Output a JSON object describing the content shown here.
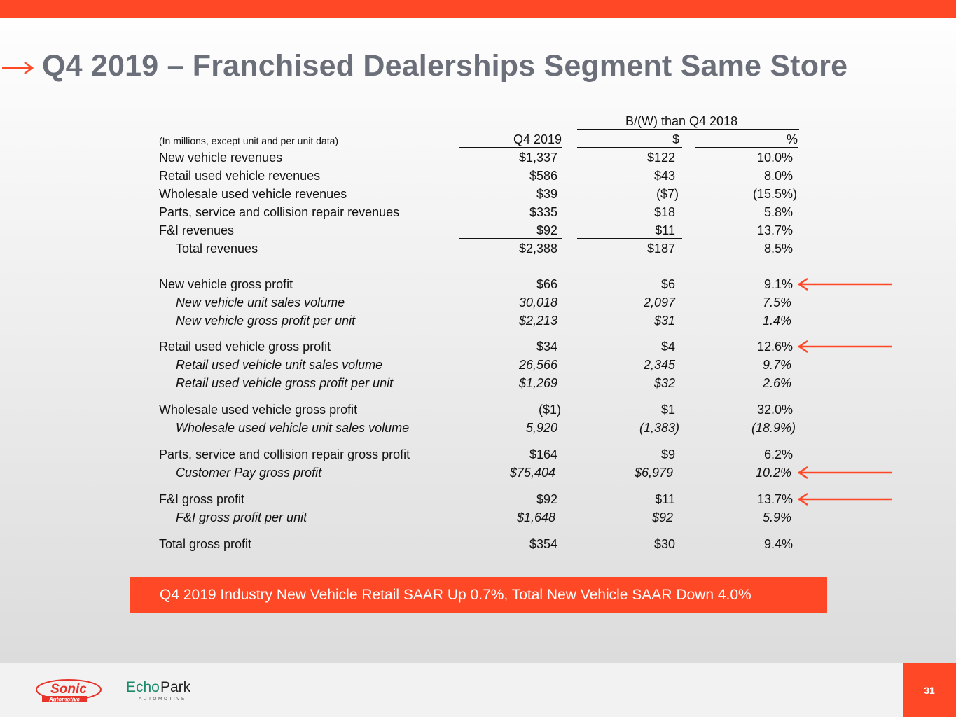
{
  "slide": {
    "title": "Q4 2019 – Franchised Dealerships Segment Same Store",
    "page_number": "31",
    "accent_color": "#ff4826",
    "title_color": "#6b6f7a"
  },
  "table": {
    "group_header": "B/(W) than Q4 2018",
    "units_note": "(In millions, except unit and per unit data)",
    "col_q4": "Q4 2019",
    "col_dollar": "$",
    "col_pct": "%",
    "rows": [
      {
        "label": "New vehicle revenues",
        "q4": "$1,337",
        "d": "$122",
        "p": "10.0%"
      },
      {
        "label": "Retail used vehicle revenues",
        "q4": "$586",
        "d": "$43",
        "p": "8.0%"
      },
      {
        "label": "Wholesale used vehicle revenues",
        "q4": "$39",
        "d": "($7)",
        "p": "(15.5%)"
      },
      {
        "label": "Parts, service and collision repair revenues",
        "q4": "$335",
        "d": "$18",
        "p": "5.8%"
      },
      {
        "label": "F&I revenues",
        "q4": "$92",
        "d": "$11",
        "p": "13.7%"
      },
      {
        "label": "Total revenues",
        "q4": "$2,388",
        "d": "$187",
        "p": "8.5%"
      },
      {
        "label": "New vehicle gross profit",
        "q4": "$66",
        "d": "$6",
        "p": "9.1%"
      },
      {
        "label": "New vehicle unit sales volume",
        "q4": "30,018",
        "d": "2,097",
        "p": "7.5%"
      },
      {
        "label": "New vehicle gross profit per unit",
        "q4": "$2,213",
        "d": "$31",
        "p": "1.4%"
      },
      {
        "label": "Retail used vehicle gross profit",
        "q4": "$34",
        "d": "$4",
        "p": "12.6%"
      },
      {
        "label": "Retail used vehicle unit sales volume",
        "q4": "26,566",
        "d": "2,345",
        "p": "9.7%"
      },
      {
        "label": "Retail used vehicle gross profit per unit",
        "q4": "$1,269",
        "d": "$32",
        "p": "2.6%"
      },
      {
        "label": "Wholesale used vehicle gross profit",
        "q4": "($1)",
        "d": "$1",
        "p": "32.0%"
      },
      {
        "label": "Wholesale used vehicle unit sales volume",
        "q4": "5,920",
        "d": "(1,383)",
        "p": "(18.9%)"
      },
      {
        "label": "Parts, service and collision repair gross profit",
        "q4": "$164",
        "d": "$9",
        "p": "6.2%"
      },
      {
        "label": "Customer Pay gross profit",
        "q4": "$75,404",
        "d": "$6,979",
        "p": "10.2%"
      },
      {
        "label": "F&I gross profit",
        "q4": "$92",
        "d": "$11",
        "p": "13.7%"
      },
      {
        "label": "F&I gross profit per unit",
        "q4": "$1,648",
        "d": "$92",
        "p": "5.9%"
      },
      {
        "label": "Total gross profit",
        "q4": "$354",
        "d": "$30",
        "p": "9.4%"
      }
    ]
  },
  "banner": {
    "text": "Q4 2019 Industry New Vehicle Retail SAAR Up 0.7%, Total New Vehicle SAAR Down 4.0%"
  },
  "footer": {
    "sonic_logo": "Sonic",
    "sonic_sub": "Automotive",
    "echo_logo_a": "Echo",
    "echo_logo_b": "Park",
    "echo_sub": "AUTOMOTIVE"
  }
}
